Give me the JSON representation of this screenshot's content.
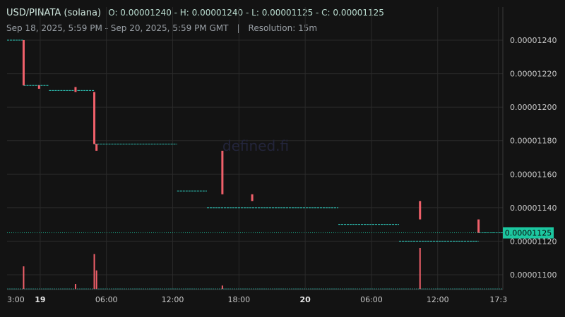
{
  "header": {
    "pair": "USD/PINATA (solana)",
    "ohlc": "O: 0.00001240 - H: 0.00001240 - L: 0.00001125 - C: 0.00001125",
    "range": "Sep 18, 2025, 5:59 PM - Sep 20, 2025, 5:59 PM GMT",
    "separator": "|",
    "resolution": "Resolution: 15m"
  },
  "watermark": "defined.fi",
  "colors": {
    "background": "#131313",
    "grid": "#2a2a2a",
    "up": "#2ec4b6",
    "down": "#f0606a",
    "last_price": "#1cc7a0"
  },
  "chart_data": {
    "type": "candlestick",
    "y_axis_position": "right",
    "ylim": [
      1.09e-05,
      1.25e-05
    ],
    "y_ticks": [
      "0.00001240",
      "0.00001220",
      "0.00001200",
      "0.00001180",
      "0.00001160",
      "0.00001140",
      "0.00001120",
      "0.00001100"
    ],
    "x_ticks": [
      {
        "label": "3:00",
        "h": 3
      },
      {
        "label": "19",
        "h": 6,
        "bold": true
      },
      {
        "label": "06:00",
        "h": 12
      },
      {
        "label": "12:00",
        "h": 18
      },
      {
        "label": "18:00",
        "h": 24
      },
      {
        "label": "20",
        "h": 30,
        "bold": true
      },
      {
        "label": "06:00",
        "h": 36
      },
      {
        "label": "12:00",
        "h": 42
      },
      {
        "label": "17:3",
        "h": 47.5
      }
    ],
    "x_range_hours": [
      3.0,
      47.9
    ],
    "last_price": "0.00001125",
    "price_steps": [
      {
        "h": 3.0,
        "price": 1.24e-05
      },
      {
        "h": 4.5,
        "price": 1.21e-05
      },
      {
        "h": 6.8,
        "price": 1.21e-05
      },
      {
        "h": 9.4,
        "price": 1.21e-05
      },
      {
        "h": 10.9,
        "price": 1.18e-05
      },
      {
        "h": 18.4,
        "price": 1.15e-05
      },
      {
        "h": 21.1,
        "price": 1.14e-05
      },
      {
        "h": 33.0,
        "price": 1.13e-05
      },
      {
        "h": 38.5,
        "price": 1.12e-05
      }
    ],
    "candles": [
      {
        "h": 4.5,
        "open": 1.24e-05,
        "close": 1.213e-05
      },
      {
        "h": 5.9,
        "open": 1.213e-05,
        "close": 1.211e-05
      },
      {
        "h": 9.2,
        "open": 1.212e-05,
        "close": 1.209e-05
      },
      {
        "h": 10.9,
        "open": 1.209e-05,
        "close": 1.178e-05
      },
      {
        "h": 11.1,
        "open": 1.178e-05,
        "close": 1.174e-05
      },
      {
        "h": 22.5,
        "open": 1.174e-05,
        "close": 1.148e-05
      },
      {
        "h": 25.2,
        "open": 1.148e-05,
        "close": 1.144e-05
      },
      {
        "h": 40.4,
        "open": 1.144e-05,
        "close": 1.133e-05
      },
      {
        "h": 45.7,
        "open": 1.133e-05,
        "close": 1.125e-05
      }
    ],
    "volume_spikes": [
      {
        "h": 4.5,
        "v": 0.55
      },
      {
        "h": 9.2,
        "v": 0.12
      },
      {
        "h": 10.9,
        "v": 0.85
      },
      {
        "h": 11.1,
        "v": 0.45
      },
      {
        "h": 22.5,
        "v": 0.08
      },
      {
        "h": 40.4,
        "v": 1.0
      }
    ]
  }
}
